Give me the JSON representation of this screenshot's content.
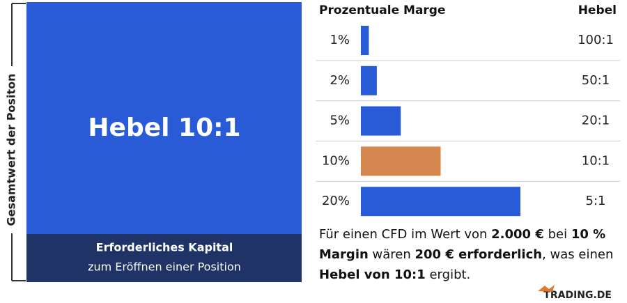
{
  "left": {
    "axis_label": "Gesamtwert der Positon",
    "headline": "Hebel 10:1",
    "footer_title": "Erforderliches Kapital",
    "footer_subtitle": "zum Eröffnen einer Position"
  },
  "table": {
    "header_margin": "Prozentuale Marge",
    "header_leverage": "Hebel",
    "bar_color": "#2a5bd7",
    "highlight_color": "#d4874f",
    "rows": [
      {
        "margin": {
          "value": 1,
          "label": "1%"
        },
        "leverage": "100:1",
        "highlight": false
      },
      {
        "margin": {
          "value": 2,
          "label": "2%"
        },
        "leverage": "50:1",
        "highlight": false
      },
      {
        "margin": {
          "value": 5,
          "label": "5%"
        },
        "leverage": "20:1",
        "highlight": false
      },
      {
        "margin": {
          "value": 10,
          "label": "10%"
        },
        "leverage": "10:1",
        "highlight": true
      },
      {
        "margin": {
          "value": 20,
          "label": "20%"
        },
        "leverage": "5:1",
        "highlight": false
      }
    ]
  },
  "note": {
    "segments": [
      {
        "text": "Für einen CFD im Wert von ",
        "bold": false
      },
      {
        "text": "2.000 €",
        "bold": true
      },
      {
        "text": " bei ",
        "bold": false
      },
      {
        "text": "10 % Margin",
        "bold": true
      },
      {
        "text": " wären ",
        "bold": false
      },
      {
        "text": "200 € erforderlich",
        "bold": true
      },
      {
        "text": ", was einen ",
        "bold": false
      },
      {
        "text": "Hebel von 10:1",
        "bold": true
      },
      {
        "text": " ergibt.",
        "bold": false
      }
    ]
  },
  "logo": "TRADING.DE"
}
